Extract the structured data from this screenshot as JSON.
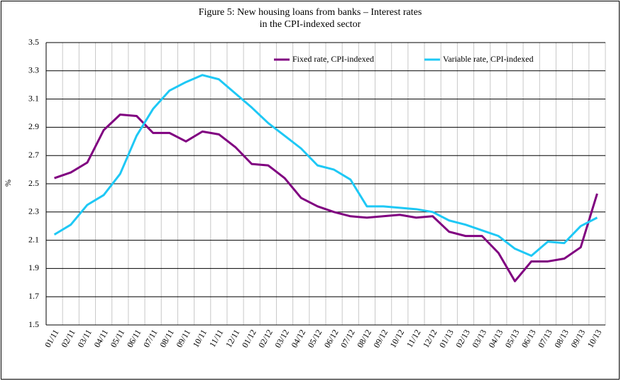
{
  "chart_data": {
    "type": "line",
    "title_lines": [
      "Figure 5: New housing loans from banks – Interest rates",
      "in the CPI-indexed sector"
    ],
    "y_label": "%",
    "categories": [
      "01/11",
      "02/11",
      "03/11",
      "04/11",
      "05/11",
      "06/11",
      "07/11",
      "08/11",
      "09/11",
      "10/11",
      "11/11",
      "12/11",
      "01/12",
      "02/12",
      "03/12",
      "04/12",
      "05/12",
      "06/12",
      "07/12",
      "08/12",
      "09/12",
      "10/12",
      "11/12",
      "12/12",
      "01/13",
      "02/13",
      "03/13",
      "04/13",
      "05/13",
      "06/13",
      "07/13",
      "08/13",
      "09/13",
      "10/13"
    ],
    "series": [
      {
        "name": "Fixed rate, CPI-indexed",
        "color": "#800080",
        "values": [
          2.54,
          2.58,
          2.65,
          2.88,
          2.99,
          2.98,
          2.86,
          2.86,
          2.8,
          2.87,
          2.85,
          2.76,
          2.64,
          2.63,
          2.54,
          2.4,
          2.34,
          2.3,
          2.27,
          2.26,
          2.27,
          2.28,
          2.26,
          2.27,
          2.16,
          2.13,
          2.13,
          2.01,
          1.81,
          1.95,
          1.95,
          1.97,
          2.05,
          2.43
        ]
      },
      {
        "name": "Variable rate, CPI-indexed",
        "color": "#1ec8f5",
        "values": [
          2.14,
          2.21,
          2.35,
          2.42,
          2.57,
          2.84,
          3.03,
          3.16,
          3.22,
          3.27,
          3.24,
          3.14,
          3.04,
          2.93,
          2.84,
          2.75,
          2.63,
          2.6,
          2.53,
          2.34,
          2.34,
          2.33,
          2.32,
          2.3,
          2.24,
          2.21,
          2.17,
          2.13,
          2.04,
          1.99,
          2.09,
          2.08,
          2.2,
          2.26
        ]
      }
    ],
    "ylim": [
      1.5,
      3.5
    ],
    "yticks": [
      1.5,
      1.7,
      1.9,
      2.1,
      2.3,
      2.5,
      2.7,
      2.9,
      3.1,
      3.3,
      3.5
    ],
    "grid": true,
    "legend": "top"
  }
}
